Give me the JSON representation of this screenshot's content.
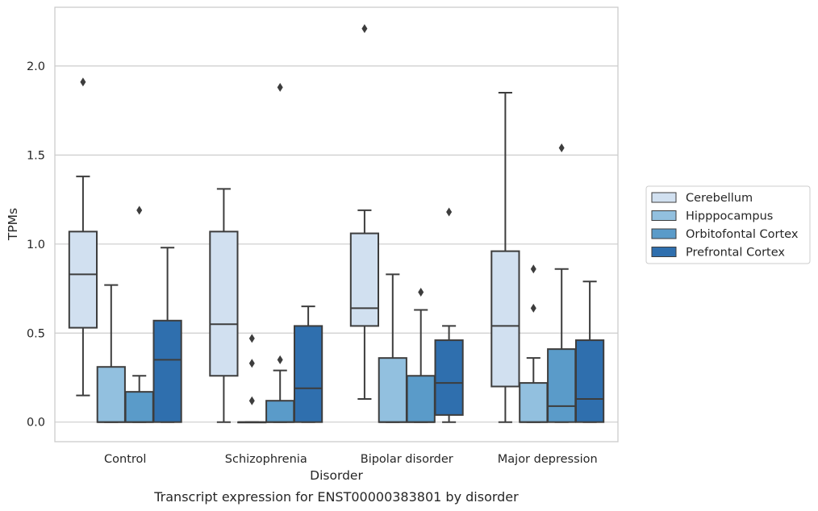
{
  "chart_data": {
    "type": "box",
    "xlabel": "Disorder",
    "ylabel": "TPMs",
    "caption": "Transcript expression for ENST00000383801 by disorder",
    "ylim": [
      -0.11,
      2.33
    ],
    "yticks": [
      "0.0",
      "0.5",
      "1.0",
      "1.5",
      "2.0"
    ],
    "grid": "horizontal",
    "legend_position": "right",
    "categories": [
      "Control",
      "Schizophrenia",
      "Bipolar disorder",
      "Major depression"
    ],
    "series": [
      {
        "name": "Cerebellum",
        "color": "#d1e0f0",
        "boxes": [
          {
            "whisker_low": 0.15,
            "q1": 0.53,
            "median": 0.83,
            "q3": 1.07,
            "whisker_high": 1.38,
            "outliers": [
              1.91
            ]
          },
          {
            "whisker_low": 0.0,
            "q1": 0.26,
            "median": 0.55,
            "q3": 1.07,
            "whisker_high": 1.31,
            "outliers": []
          },
          {
            "whisker_low": 0.13,
            "q1": 0.54,
            "median": 0.64,
            "q3": 1.06,
            "whisker_high": 1.19,
            "outliers": [
              2.21
            ]
          },
          {
            "whisker_low": 0.0,
            "q1": 0.2,
            "median": 0.54,
            "q3": 0.96,
            "whisker_high": 1.85,
            "outliers": []
          }
        ]
      },
      {
        "name": "Hipppocampus",
        "color": "#92c0df",
        "boxes": [
          {
            "whisker_low": 0.0,
            "q1": 0.0,
            "median": 0.0,
            "q3": 0.31,
            "whisker_high": 0.77,
            "outliers": []
          },
          {
            "whisker_low": 0.0,
            "q1": 0.0,
            "median": 0.0,
            "q3": 0.0,
            "whisker_high": 0.0,
            "outliers": [
              0.12,
              0.33,
              0.47
            ]
          },
          {
            "whisker_low": 0.0,
            "q1": 0.0,
            "median": 0.0,
            "q3": 0.36,
            "whisker_high": 0.83,
            "outliers": []
          },
          {
            "whisker_low": 0.0,
            "q1": 0.0,
            "median": 0.0,
            "q3": 0.22,
            "whisker_high": 0.36,
            "outliers": [
              0.64,
              0.86
            ]
          }
        ]
      },
      {
        "name": "Orbitofontal Cortex",
        "color": "#5a9bc9",
        "boxes": [
          {
            "whisker_low": 0.0,
            "q1": 0.0,
            "median": 0.0,
            "q3": 0.17,
            "whisker_high": 0.26,
            "outliers": [
              1.19
            ]
          },
          {
            "whisker_low": 0.0,
            "q1": 0.0,
            "median": 0.0,
            "q3": 0.12,
            "whisker_high": 0.29,
            "outliers": [
              0.35,
              1.88
            ]
          },
          {
            "whisker_low": 0.0,
            "q1": 0.0,
            "median": 0.0,
            "q3": 0.26,
            "whisker_high": 0.63,
            "outliers": [
              0.73
            ]
          },
          {
            "whisker_low": 0.0,
            "q1": 0.0,
            "median": 0.09,
            "q3": 0.41,
            "whisker_high": 0.86,
            "outliers": [
              1.54
            ]
          }
        ]
      },
      {
        "name": "Prefrontal Cortex",
        "color": "#2f6fae",
        "boxes": [
          {
            "whisker_low": 0.0,
            "q1": 0.0,
            "median": 0.35,
            "q3": 0.57,
            "whisker_high": 0.98,
            "outliers": []
          },
          {
            "whisker_low": 0.0,
            "q1": 0.0,
            "median": 0.19,
            "q3": 0.54,
            "whisker_high": 0.65,
            "outliers": []
          },
          {
            "whisker_low": 0.0,
            "q1": 0.04,
            "median": 0.22,
            "q3": 0.46,
            "whisker_high": 0.54,
            "outliers": [
              1.18
            ]
          },
          {
            "whisker_low": 0.0,
            "q1": 0.0,
            "median": 0.13,
            "q3": 0.46,
            "whisker_high": 0.79,
            "outliers": []
          }
        ]
      }
    ]
  }
}
